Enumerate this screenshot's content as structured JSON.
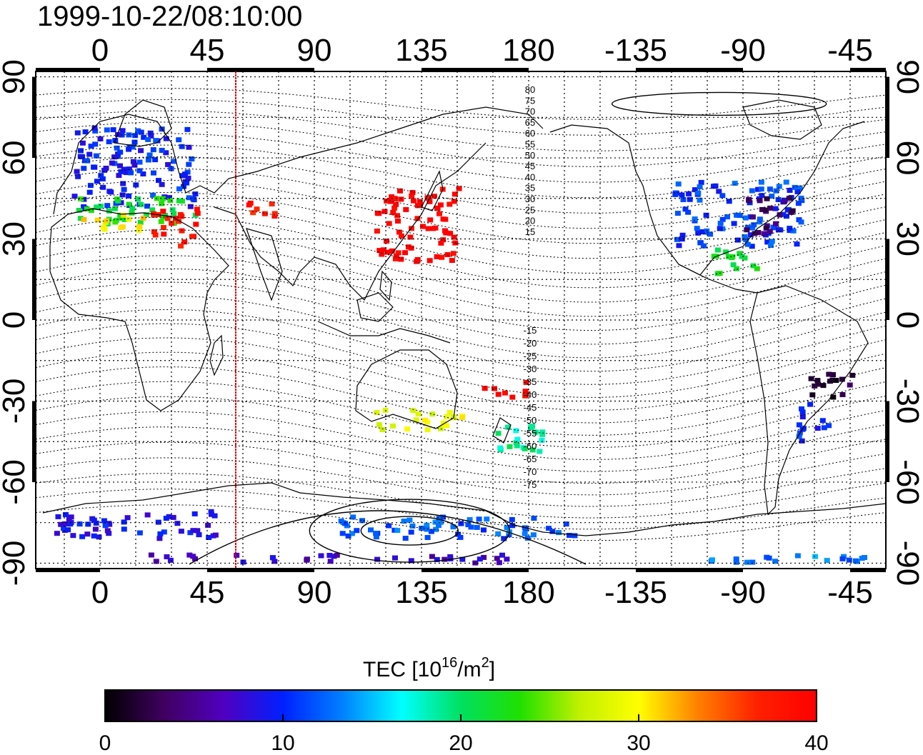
{
  "timestamp": "1999-10-22/08:10:00",
  "axes": {
    "top_lon_ticks": [
      "0",
      "45",
      "90",
      "135",
      "180",
      "-135",
      "-90",
      "-45"
    ],
    "bottom_lon_ticks": [
      "0",
      "45",
      "90",
      "135",
      "180",
      "-135",
      "-90",
      "-45"
    ],
    "left_lat_ticks": [
      "90",
      "60",
      "30",
      "0",
      "-30",
      "-60",
      "-90"
    ],
    "right_lat_ticks": [
      "90",
      "60",
      "30",
      "0",
      "-30",
      "-60",
      "-90"
    ]
  },
  "terminator_line": {
    "longitude": 57,
    "color": "#e00000"
  },
  "contour_labels_north": [
    "80",
    "75",
    "70",
    "65",
    "60",
    "55",
    "50",
    "45",
    "40",
    "35",
    "30",
    "25",
    "20",
    "15"
  ],
  "contour_labels_south": [
    "-15",
    "-20",
    "-25",
    "-30",
    "-35",
    "-40",
    "-45",
    "-50",
    "-55",
    "-60",
    "-65",
    "-70",
    "-75"
  ],
  "colorbar": {
    "title_prefix": "TEC  [10",
    "title_sup1": "16",
    "title_mid": "/m",
    "title_sup2": "2",
    "title_suffix": "]",
    "tick_labels": [
      "0",
      "10",
      "20",
      "30",
      "40"
    ],
    "min": 0,
    "max": 40,
    "stops": [
      "#000000",
      "#400060",
      "#5000c0",
      "#0020ff",
      "#0080ff",
      "#00ffff",
      "#00e060",
      "#20e000",
      "#c0f000",
      "#ffff00",
      "#ff8000",
      "#ff2000",
      "#ff0000"
    ]
  },
  "tec_regions": [
    {
      "lon": [
        -12,
        40
      ],
      "lat": [
        42,
        72
      ],
      "tec": 10
    },
    {
      "lon": [
        -10,
        40
      ],
      "lat": [
        36,
        46
      ],
      "tec": 22
    },
    {
      "lon": [
        -8,
        20
      ],
      "lat": [
        34,
        40
      ],
      "tec": 30
    },
    {
      "lon": [
        20,
        40
      ],
      "lat": [
        28,
        42
      ],
      "tec": 38
    },
    {
      "lon": [
        60,
        75
      ],
      "lat": [
        38,
        45
      ],
      "tec": 38
    },
    {
      "lon": [
        115,
        150
      ],
      "lat": [
        22,
        50
      ],
      "tec": 40
    },
    {
      "lon": [
        -120,
        -65
      ],
      "lat": [
        28,
        52
      ],
      "tec": 11
    },
    {
      "lon": [
        -90,
        -70
      ],
      "lat": [
        32,
        46
      ],
      "tec": 4
    },
    {
      "lon": [
        -105,
        -85
      ],
      "lat": [
        18,
        28
      ],
      "tec": 22
    },
    {
      "lon": [
        -65,
        -45
      ],
      "lat": [
        -28,
        -18
      ],
      "tec": 2
    },
    {
      "lon": [
        -68,
        -55
      ],
      "lat": [
        -45,
        -30
      ],
      "tec": 10
    },
    {
      "lon": [
        115,
        152
      ],
      "lat": [
        -40,
        -32
      ],
      "tec": 29
    },
    {
      "lon": [
        165,
        190
      ],
      "lat": [
        -48,
        -38
      ],
      "tec": 19
    },
    {
      "lon": [
        160,
        180
      ],
      "lat": [
        -28,
        -22
      ],
      "tec": 40
    },
    {
      "lon": [
        -20,
        50
      ],
      "lat": [
        -80,
        -70
      ],
      "tec": 9
    },
    {
      "lon": [
        100,
        200
      ],
      "lat": [
        -80,
        -72
      ],
      "tec": 12
    },
    {
      "lon": [
        20,
        170
      ],
      "lat": [
        -89,
        -86
      ],
      "tec": 7
    },
    {
      "lon": [
        -120,
        -40
      ],
      "lat": [
        -89,
        -86
      ],
      "tec": 13
    }
  ]
}
